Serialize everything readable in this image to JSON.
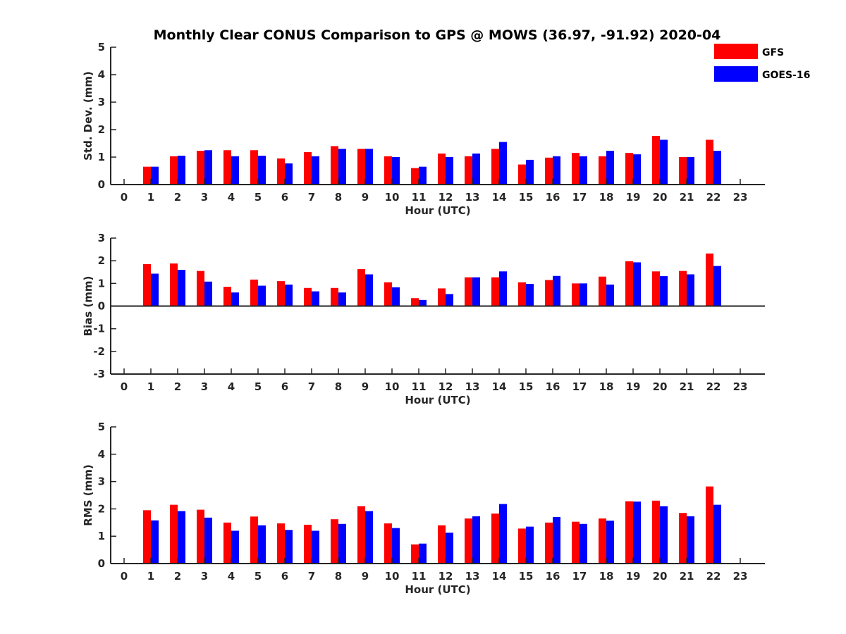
{
  "chart_data": {
    "type": "bar",
    "title": "Monthly Clear CONUS Comparison to GPS @ MOWS (36.97, -91.92) 2020-04",
    "colors": {
      "GFS": "#ff0000",
      "GOES-16": "#0000ff"
    },
    "legend": {
      "placement": "top-right",
      "entries": [
        "GFS",
        "GOES-16"
      ]
    },
    "panels": [
      {
        "ylabel": "Std. Dev. (mm)",
        "xlabel": "Hour (UTC)",
        "ylim": [
          0,
          5
        ],
        "yticks": [
          0,
          1,
          2,
          3,
          4,
          5
        ],
        "x": [
          0,
          1,
          2,
          3,
          4,
          5,
          6,
          7,
          8,
          9,
          10,
          11,
          12,
          13,
          14,
          15,
          16,
          17,
          18,
          19,
          20,
          21,
          22,
          23
        ],
        "series": [
          {
            "name": "GFS",
            "values": [
              null,
              0.65,
              1.03,
              1.23,
              1.25,
              1.25,
              0.95,
              1.18,
              1.4,
              1.3,
              1.03,
              0.6,
              1.13,
              1.03,
              1.3,
              0.73,
              0.98,
              1.15,
              1.03,
              1.15,
              1.77,
              1.0,
              1.63,
              null
            ]
          },
          {
            "name": "GOES-16",
            "values": [
              null,
              0.65,
              1.05,
              1.25,
              1.03,
              1.05,
              0.77,
              1.03,
              1.3,
              1.3,
              1.0,
              0.65,
              1.0,
              1.13,
              1.55,
              0.9,
              1.03,
              1.03,
              1.23,
              1.1,
              1.63,
              1.0,
              1.23,
              null
            ]
          }
        ]
      },
      {
        "ylabel": "Bias (mm)",
        "xlabel": "Hour (UTC)",
        "ylim": [
          -3,
          3
        ],
        "yticks": [
          -3,
          -2,
          -1,
          0,
          1,
          2,
          3
        ],
        "x": [
          0,
          1,
          2,
          3,
          4,
          5,
          6,
          7,
          8,
          9,
          10,
          11,
          12,
          13,
          14,
          15,
          16,
          17,
          18,
          19,
          20,
          21,
          22,
          23
        ],
        "series": [
          {
            "name": "GFS",
            "values": [
              null,
              1.85,
              1.88,
              1.55,
              0.85,
              1.17,
              1.1,
              0.8,
              0.8,
              1.63,
              1.05,
              0.35,
              0.78,
              1.27,
              1.27,
              1.05,
              1.15,
              1.0,
              1.3,
              1.98,
              1.53,
              1.55,
              2.32,
              null
            ]
          },
          {
            "name": "GOES-16",
            "values": [
              null,
              1.43,
              1.6,
              1.08,
              0.6,
              0.9,
              0.95,
              0.65,
              0.6,
              1.4,
              0.83,
              0.27,
              0.53,
              1.27,
              1.53,
              0.98,
              1.33,
              1.0,
              0.95,
              1.93,
              1.32,
              1.4,
              1.77,
              null
            ]
          }
        ]
      },
      {
        "ylabel": "RMS (mm)",
        "xlabel": "Hour (UTC)",
        "ylim": [
          0,
          5
        ],
        "yticks": [
          0,
          1,
          2,
          3,
          4,
          5
        ],
        "x": [
          0,
          1,
          2,
          3,
          4,
          5,
          6,
          7,
          8,
          9,
          10,
          11,
          12,
          13,
          14,
          15,
          16,
          17,
          18,
          19,
          20,
          21,
          22,
          23
        ],
        "series": [
          {
            "name": "GFS",
            "values": [
              null,
              1.95,
              2.15,
              1.97,
              1.5,
              1.72,
              1.47,
              1.42,
              1.62,
              2.1,
              1.47,
              0.7,
              1.4,
              1.65,
              1.83,
              1.28,
              1.5,
              1.53,
              1.65,
              2.28,
              2.3,
              1.85,
              2.82,
              null
            ]
          },
          {
            "name": "GOES-16",
            "values": [
              null,
              1.58,
              1.92,
              1.68,
              1.2,
              1.4,
              1.23,
              1.2,
              1.45,
              1.92,
              1.3,
              0.73,
              1.13,
              1.73,
              2.18,
              1.35,
              1.7,
              1.45,
              1.57,
              2.27,
              2.1,
              1.73,
              2.15,
              null
            ]
          }
        ]
      }
    ]
  }
}
